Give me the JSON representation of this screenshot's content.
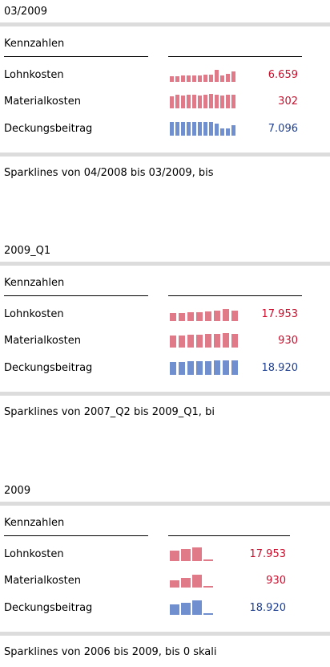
{
  "sections": [
    {
      "period": "03/2009",
      "header": "Kennzahlen",
      "rows": [
        {
          "label": "Lohnkosten",
          "value": "6.659",
          "bars": [
            7,
            7,
            8,
            8,
            8,
            8,
            9,
            9,
            15,
            8,
            10,
            13
          ]
        },
        {
          "label": "Materialkosten",
          "value": "302",
          "bars": [
            15,
            17,
            16,
            17,
            17,
            16,
            17,
            18,
            17,
            16,
            17,
            17
          ]
        },
        {
          "label": "Deckungsbeitrag",
          "value": "7.096",
          "bars": [
            17,
            17,
            17,
            17,
            17,
            17,
            17,
            17,
            15,
            9,
            9,
            13
          ]
        }
      ],
      "footer": "Sparklines von 04/2008 bis 03/2009, bis"
    },
    {
      "period": "2009_Q1",
      "header": "Kennzahlen",
      "rows": [
        {
          "label": "Lohnkosten",
          "value": "17.953",
          "bars": [
            10,
            10,
            11,
            11,
            12,
            13,
            15,
            13
          ]
        },
        {
          "label": "Materialkosten",
          "value": "930",
          "bars": [
            15,
            15,
            16,
            16,
            17,
            17,
            18,
            17
          ]
        },
        {
          "label": "Deckungsbeitrag",
          "value": "18.920",
          "bars": [
            16,
            16,
            17,
            17,
            17,
            18,
            18,
            18
          ]
        }
      ],
      "footer": "Sparklines von 2007_Q2 bis 2009_Q1, bi"
    },
    {
      "period": "2009",
      "header": "Kennzahlen",
      "rows": [
        {
          "label": "Lohnkosten",
          "value": "17.953",
          "bars": [
            13,
            15,
            17,
            2
          ]
        },
        {
          "label": "Materialkosten",
          "value": "930",
          "bars": [
            9,
            12,
            16,
            2
          ]
        },
        {
          "label": "Deckungsbeitrag",
          "value": "18.920",
          "bars": [
            13,
            15,
            18,
            2
          ]
        }
      ],
      "footer": "Sparklines von 2006 bis 2009, bis 0 skali"
    }
  ]
}
